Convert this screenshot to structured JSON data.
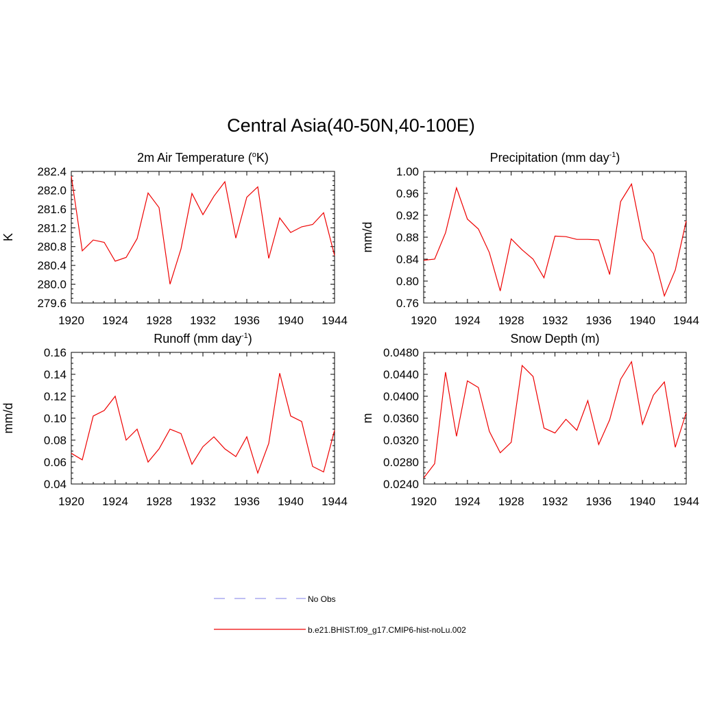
{
  "figure_title": "Central Asia(40-50N,40-100E)",
  "legend": {
    "items": [
      {
        "label": "No Obs",
        "color": "#9999ee",
        "style": "dashed"
      },
      {
        "label": "b.e21.BHIST.f09_g17.CMIP6-hist-noLu.002",
        "color": "#ee0000",
        "style": "solid"
      }
    ]
  },
  "chart_data": [
    {
      "type": "line",
      "title_pre": "2m Air Temperature (",
      "title_sup": "o",
      "title_post": "K)",
      "ylabel": "K",
      "xlim": [
        1920,
        1944
      ],
      "ylim": [
        279.6,
        282.4
      ],
      "xticks": [
        1920,
        1924,
        1928,
        1932,
        1936,
        1940,
        1944
      ],
      "yticks": [
        "279.6",
        "280.0",
        "280.4",
        "280.8",
        "281.2",
        "281.6",
        "282.0",
        "282.4"
      ],
      "grid": false,
      "series": [
        {
          "color": "#ee0000",
          "x": [
            1920,
            1921,
            1922,
            1923,
            1924,
            1925,
            1926,
            1927,
            1928,
            1929,
            1930,
            1931,
            1932,
            1933,
            1934,
            1935,
            1936,
            1937,
            1938,
            1939,
            1940,
            1941,
            1942,
            1943,
            1944
          ],
          "values": [
            282.3,
            280.71,
            280.94,
            280.89,
            280.49,
            280.57,
            280.97,
            281.94,
            281.63,
            280.0,
            280.75,
            281.93,
            281.48,
            281.87,
            282.18,
            280.98,
            281.85,
            282.07,
            280.55,
            281.41,
            281.1,
            281.22,
            281.27,
            281.52,
            280.61
          ]
        }
      ]
    },
    {
      "type": "line",
      "title_pre": "Precipitation (mm day",
      "title_sup": "-1",
      "title_post": ")",
      "ylabel": "mm/d",
      "xlim": [
        1920,
        1944
      ],
      "ylim": [
        0.76,
        1.0
      ],
      "xticks": [
        1920,
        1924,
        1928,
        1932,
        1936,
        1940,
        1944
      ],
      "yticks": [
        "0.76",
        "0.80",
        "0.84",
        "0.88",
        "0.92",
        "0.96",
        "1.00"
      ],
      "grid": false,
      "series": [
        {
          "color": "#ee0000",
          "x": [
            1920,
            1921,
            1922,
            1923,
            1924,
            1925,
            1926,
            1927,
            1928,
            1929,
            1930,
            1931,
            1932,
            1933,
            1934,
            1935,
            1936,
            1937,
            1938,
            1939,
            1940,
            1941,
            1942,
            1943,
            1944
          ],
          "values": [
            0.838,
            0.84,
            0.888,
            0.97,
            0.913,
            0.895,
            0.852,
            0.782,
            0.877,
            0.857,
            0.84,
            0.806,
            0.882,
            0.881,
            0.876,
            0.876,
            0.875,
            0.812,
            0.945,
            0.977,
            0.877,
            0.85,
            0.773,
            0.82,
            0.91
          ]
        }
      ]
    },
    {
      "type": "line",
      "title_pre": "Runoff (mm day",
      "title_sup": "-1",
      "title_post": ")",
      "ylabel": "mm/d",
      "xlim": [
        1920,
        1944
      ],
      "ylim": [
        0.04,
        0.16
      ],
      "xticks": [
        1920,
        1924,
        1928,
        1932,
        1936,
        1940,
        1944
      ],
      "yticks": [
        "0.04",
        "0.06",
        "0.08",
        "0.10",
        "0.12",
        "0.14",
        "0.16"
      ],
      "grid": false,
      "series": [
        {
          "color": "#ee0000",
          "x": [
            1920,
            1921,
            1922,
            1923,
            1924,
            1925,
            1926,
            1927,
            1928,
            1929,
            1930,
            1931,
            1932,
            1933,
            1934,
            1935,
            1936,
            1937,
            1938,
            1939,
            1940,
            1941,
            1942,
            1943,
            1944
          ],
          "values": [
            0.068,
            0.062,
            0.102,
            0.107,
            0.12,
            0.08,
            0.09,
            0.06,
            0.072,
            0.09,
            0.086,
            0.058,
            0.074,
            0.083,
            0.072,
            0.065,
            0.083,
            0.05,
            0.077,
            0.141,
            0.102,
            0.097,
            0.056,
            0.051,
            0.089
          ]
        }
      ]
    },
    {
      "type": "line",
      "title_pre": "Snow Depth (m)",
      "title_sup": "",
      "title_post": "",
      "ylabel": "m",
      "xlim": [
        1920,
        1944
      ],
      "ylim": [
        0.024,
        0.048
      ],
      "xticks": [
        1920,
        1924,
        1928,
        1932,
        1936,
        1940,
        1944
      ],
      "yticks": [
        "0.0240",
        "0.0280",
        "0.0320",
        "0.0360",
        "0.0400",
        "0.0440",
        "0.0480"
      ],
      "grid": false,
      "series": [
        {
          "color": "#ee0000",
          "x": [
            1920,
            1921,
            1922,
            1923,
            1924,
            1925,
            1926,
            1927,
            1928,
            1929,
            1930,
            1931,
            1932,
            1933,
            1934,
            1935,
            1936,
            1937,
            1938,
            1939,
            1940,
            1941,
            1942,
            1943,
            1944
          ],
          "values": [
            0.0251,
            0.0277,
            0.0444,
            0.0327,
            0.0428,
            0.0416,
            0.0336,
            0.0297,
            0.0316,
            0.0456,
            0.0436,
            0.0342,
            0.0333,
            0.0358,
            0.0338,
            0.0392,
            0.0312,
            0.0357,
            0.0431,
            0.0463,
            0.0349,
            0.0402,
            0.0426,
            0.0307,
            0.037
          ]
        }
      ]
    }
  ]
}
